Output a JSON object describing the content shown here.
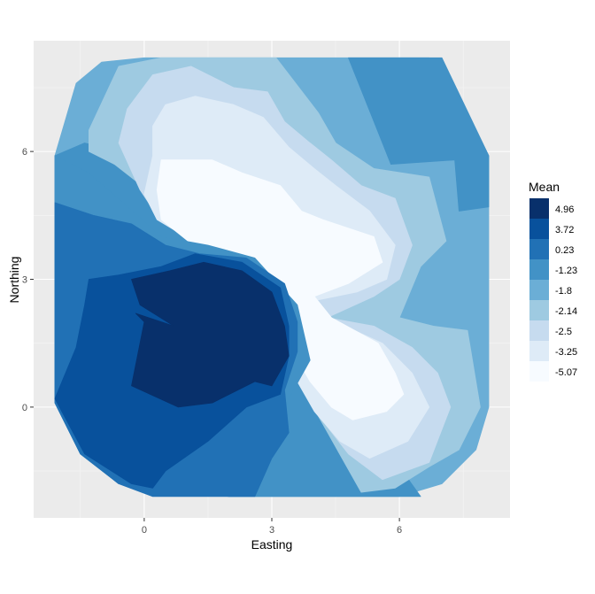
{
  "chart_data": {
    "type": "heatmap",
    "subtype": "filled-contour",
    "xlabel": "Easting",
    "ylabel": "Northing",
    "x_ticks": [
      0,
      3,
      6
    ],
    "y_ticks": [
      0,
      3,
      6
    ],
    "xlim": [
      -2.6,
      8.6
    ],
    "ylim": [
      -2.6,
      8.6
    ],
    "grid": true,
    "legend": {
      "title": "Mean",
      "position": "right",
      "levels": [
        {
          "label": "4.96",
          "color": "#08306b"
        },
        {
          "label": "3.72",
          "color": "#08519c"
        },
        {
          "label": "0.23",
          "color": "#2171b5"
        },
        {
          "label": "-1.23",
          "color": "#4292c6"
        },
        {
          "label": "-1.8",
          "color": "#6baed6"
        },
        {
          "label": "-2.14",
          "color": "#9ecae1"
        },
        {
          "label": "-2.5",
          "color": "#c6dbef"
        },
        {
          "label": "-3.25",
          "color": "#deebf7"
        },
        {
          "label": "-5.07",
          "color": "#f7fbff"
        }
      ]
    },
    "regions": [
      {
        "level": "-1.8",
        "polygon": [
          [
            -2.1,
            5.9
          ],
          [
            -1.6,
            7.6
          ],
          [
            -1.0,
            8.1
          ],
          [
            0,
            8.2
          ],
          [
            1,
            8.2
          ],
          [
            2,
            8.2
          ],
          [
            3,
            8.2
          ],
          [
            4,
            8.2
          ],
          [
            5,
            8.2
          ],
          [
            6,
            8.2
          ],
          [
            6.7,
            8.2
          ],
          [
            7.3,
            7.5
          ],
          [
            8.1,
            5.9
          ],
          [
            8.1,
            0
          ],
          [
            7.8,
            -1.0
          ],
          [
            7,
            -1.8
          ],
          [
            6,
            -2.1
          ],
          [
            4,
            -2.1
          ],
          [
            3,
            -2.1
          ],
          [
            2,
            -2.1
          ],
          [
            0.2,
            -1.9
          ],
          [
            -0.6,
            -1.8
          ],
          [
            -1.5,
            -1.1
          ],
          [
            -2.1,
            0.1
          ]
        ]
      },
      {
        "level": "-1.23",
        "polygon": [
          [
            5.5,
            8.2
          ],
          [
            7,
            8.2
          ],
          [
            8.1,
            5.9
          ],
          [
            8.1,
            4.7
          ],
          [
            7.4,
            4.6
          ],
          [
            7.3,
            5.8
          ],
          [
            5.8,
            5.7
          ],
          [
            5.4,
            6.7
          ],
          [
            4.8,
            8.2
          ]
        ]
      },
      {
        "level": "-1.23",
        "polygon": [
          [
            -2.1,
            5.9
          ],
          [
            -1.4,
            6.2
          ],
          [
            -0.6,
            6.0
          ],
          [
            0.3,
            5.5
          ],
          [
            1.5,
            4.1
          ],
          [
            2.8,
            3.6
          ],
          [
            4.1,
            0.6
          ],
          [
            4.5,
            -0.4
          ],
          [
            5.2,
            -1.0
          ],
          [
            6.0,
            -1.4
          ],
          [
            6.5,
            -2.1
          ],
          [
            2,
            -2.1
          ],
          [
            0.2,
            -1.9
          ],
          [
            -0.6,
            -1.8
          ],
          [
            -1.5,
            -1.1
          ],
          [
            -2.1,
            0.1
          ]
        ]
      },
      {
        "level": "-2.14",
        "polygon": [
          [
            -1.3,
            6.5
          ],
          [
            -0.6,
            8.0
          ],
          [
            0.4,
            8.2
          ],
          [
            1.8,
            8.2
          ],
          [
            3.1,
            8.2
          ],
          [
            4.1,
            6.9
          ],
          [
            4.5,
            6.2
          ],
          [
            5.4,
            5.6
          ],
          [
            6.7,
            5.4
          ],
          [
            7.1,
            3.9
          ],
          [
            6.5,
            3.3
          ],
          [
            6.0,
            2.1
          ],
          [
            6.8,
            1.9
          ],
          [
            7.6,
            1.8
          ],
          [
            7.9,
            0
          ],
          [
            7.4,
            -1.0
          ],
          [
            6.7,
            -1.4
          ],
          [
            5.9,
            -1.9
          ],
          [
            5.1,
            -2.0
          ],
          [
            4.2,
            -0.4
          ],
          [
            3.8,
            0.3
          ],
          [
            3.3,
            2.4
          ],
          [
            2.6,
            3.7
          ],
          [
            1.3,
            4.1
          ],
          [
            0.2,
            5.0
          ],
          [
            -0.7,
            5.7
          ],
          [
            -1.3,
            6.0
          ]
        ]
      },
      {
        "level": "-2.5",
        "polygon": [
          [
            -0.4,
            7.0
          ],
          [
            0.2,
            7.8
          ],
          [
            1.1,
            8.0
          ],
          [
            2.1,
            7.5
          ],
          [
            2.9,
            7.4
          ],
          [
            3.3,
            6.7
          ],
          [
            3.9,
            6.2
          ],
          [
            4.4,
            5.8
          ],
          [
            5.1,
            5.2
          ],
          [
            5.9,
            4.9
          ],
          [
            6.3,
            3.8
          ],
          [
            6.0,
            3.0
          ],
          [
            5.4,
            2.6
          ],
          [
            4.3,
            2.1
          ],
          [
            5.4,
            1.9
          ],
          [
            6.3,
            1.4
          ],
          [
            6.9,
            0.8
          ],
          [
            7.2,
            0
          ],
          [
            6.7,
            -1.3
          ],
          [
            5.6,
            -1.7
          ],
          [
            4.8,
            -1.1
          ],
          [
            4.1,
            -0.2
          ],
          [
            3.7,
            0.5
          ],
          [
            3.2,
            2.4
          ],
          [
            2.6,
            3.4
          ],
          [
            1.4,
            3.9
          ],
          [
            0.3,
            4.5
          ],
          [
            -0.1,
            5.1
          ],
          [
            -0.6,
            6.2
          ]
        ]
      },
      {
        "level": "-3.25",
        "polygon": [
          [
            0.2,
            6.6
          ],
          [
            0.5,
            7.1
          ],
          [
            1.2,
            7.3
          ],
          [
            2.1,
            7.1
          ],
          [
            2.8,
            6.8
          ],
          [
            3.4,
            6.1
          ],
          [
            4.0,
            5.6
          ],
          [
            4.5,
            5.2
          ],
          [
            5.3,
            4.6
          ],
          [
            5.9,
            3.8
          ],
          [
            5.7,
            3.0
          ],
          [
            5.0,
            2.7
          ],
          [
            4.0,
            2.5
          ],
          [
            4.5,
            2.0
          ],
          [
            5.6,
            1.5
          ],
          [
            6.3,
            0.8
          ],
          [
            6.7,
            0
          ],
          [
            6.2,
            -0.8
          ],
          [
            5.3,
            -1.2
          ],
          [
            4.6,
            -0.8
          ],
          [
            4.0,
            -0.1
          ],
          [
            3.6,
            0.6
          ],
          [
            3.1,
            2.4
          ],
          [
            2.6,
            3.3
          ],
          [
            1.3,
            3.8
          ],
          [
            0.3,
            4.4
          ],
          [
            0,
            5.0
          ],
          [
            0.2,
            5.9
          ]
        ]
      },
      {
        "level": "-5.07",
        "polygon": [
          [
            0.4,
            5.8
          ],
          [
            0.8,
            5.8
          ],
          [
            1.6,
            5.8
          ],
          [
            2.3,
            5.5
          ],
          [
            3.2,
            5.2
          ],
          [
            3.7,
            4.6
          ],
          [
            4.2,
            4.4
          ],
          [
            5.4,
            4.0
          ],
          [
            5.6,
            3.4
          ],
          [
            4.8,
            2.9
          ],
          [
            4.0,
            2.6
          ],
          [
            4.4,
            2.1
          ],
          [
            5.5,
            1.5
          ],
          [
            5.9,
            0.8
          ],
          [
            6.1,
            0.3
          ],
          [
            5.7,
            -0.1
          ],
          [
            4.9,
            -0.3
          ],
          [
            4.4,
            0
          ],
          [
            3.9,
            0.6
          ],
          [
            3.5,
            1.3
          ],
          [
            3.1,
            2.5
          ],
          [
            2.6,
            3.2
          ],
          [
            1.4,
            3.6
          ],
          [
            0.4,
            4.4
          ],
          [
            0.3,
            5.1
          ]
        ]
      },
      {
        "level": "-1.23",
        "polygon": [
          [
            -2.1,
            5.9
          ],
          [
            -1.3,
            5.5
          ],
          [
            -0.5,
            4.8
          ],
          [
            0.4,
            4.0
          ],
          [
            1.5,
            3.8
          ],
          [
            2.6,
            3.5
          ],
          [
            3.6,
            2.4
          ],
          [
            3.9,
            1.1
          ],
          [
            3.4,
            0.2
          ],
          [
            2.8,
            -0.2
          ],
          [
            1.6,
            -0.6
          ],
          [
            0.4,
            -0.6
          ],
          [
            -0.6,
            -0.1
          ],
          [
            -1.2,
            1.4
          ],
          [
            -1.9,
            2.9
          ],
          [
            -2.1,
            4.7
          ]
        ]
      },
      {
        "level": "0.23",
        "polygon": [
          [
            -2.1,
            4.8
          ],
          [
            -1.2,
            4.5
          ],
          [
            -0.3,
            4.3
          ],
          [
            0.5,
            3.8
          ],
          [
            1.3,
            3.6
          ],
          [
            2.4,
            3.5
          ],
          [
            3.3,
            2.9
          ],
          [
            3.6,
            2.0
          ],
          [
            3.6,
            1.3
          ],
          [
            3.3,
            0.4
          ],
          [
            3.4,
            -0.6
          ],
          [
            3.0,
            -1.2
          ],
          [
            2.6,
            -2.1
          ],
          [
            0.2,
            -2.1
          ],
          [
            -0.6,
            -1.8
          ],
          [
            -1.5,
            -1.1
          ],
          [
            -2.1,
            0.1
          ]
        ]
      },
      {
        "level": "3.72",
        "polygon": [
          [
            -2.1,
            0.2
          ],
          [
            -1.6,
            1.4
          ],
          [
            -1.4,
            2.4
          ],
          [
            -1.3,
            3.0
          ],
          [
            -0.6,
            3.1
          ],
          [
            0.4,
            3.3
          ],
          [
            1.2,
            3.6
          ],
          [
            2.3,
            3.4
          ],
          [
            3.2,
            2.8
          ],
          [
            3.4,
            1.9
          ],
          [
            3.4,
            1.2
          ],
          [
            3.2,
            0.3
          ],
          [
            2.4,
            0
          ],
          [
            1.5,
            -0.8
          ],
          [
            0.5,
            -1.5
          ],
          [
            0.2,
            -1.9
          ],
          [
            -0.3,
            -1.8
          ],
          [
            -1.4,
            -1.1
          ]
        ]
      },
      {
        "level": "4.96",
        "polygon": [
          [
            -0.3,
            3.0
          ],
          [
            0.6,
            3.2
          ],
          [
            1.4,
            3.4
          ],
          [
            2.3,
            3.2
          ],
          [
            3.0,
            2.7
          ],
          [
            3.3,
            1.9
          ],
          [
            3.4,
            1.2
          ],
          [
            3.0,
            0.5
          ],
          [
            2.6,
            0.6
          ],
          [
            1.6,
            0.1
          ],
          [
            0.8,
            0
          ],
          [
            -0.3,
            0.5
          ],
          [
            -0.1,
            1.5
          ],
          [
            0,
            2.0
          ],
          [
            -0.2,
            2.2
          ],
          [
            0.7,
            1.9
          ],
          [
            -0.1,
            2.4
          ]
        ]
      }
    ]
  }
}
